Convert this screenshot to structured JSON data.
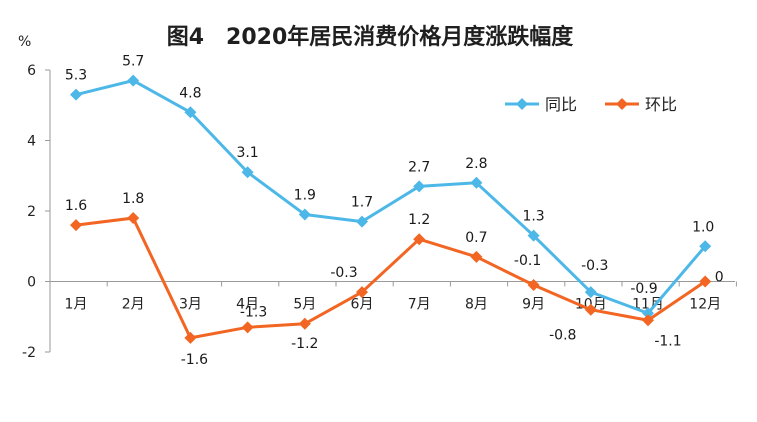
{
  "chart_data": {
    "type": "line",
    "title": "图4　2020年居民消费价格月度涨跌幅度",
    "ylabel": "%",
    "xlabel": "",
    "ylim": [
      -2,
      6
    ],
    "yticks": [
      -2,
      0,
      2,
      4,
      6
    ],
    "grid": false,
    "legend_position": "top-right",
    "categories": [
      "1月",
      "2月",
      "3月",
      "4月",
      "5月",
      "6月",
      "7月",
      "8月",
      "9月",
      "10月",
      "11月",
      "12月"
    ],
    "series": [
      {
        "name": "同比",
        "color": "#4DB8E8",
        "values": [
          5.3,
          5.7,
          4.8,
          3.1,
          1.9,
          1.7,
          2.7,
          2.8,
          1.3,
          -0.3,
          -0.9,
          1.0
        ],
        "labels": [
          "5.3",
          "5.7",
          "4.8",
          "3.1",
          "1.9",
          "1.7",
          "2.7",
          "2.8",
          "1.3",
          "-0.3",
          "-0.9",
          "1.0"
        ]
      },
      {
        "name": "环比",
        "color": "#F26522",
        "values": [
          1.6,
          1.8,
          -1.6,
          -1.3,
          -1.2,
          -0.3,
          1.2,
          0.7,
          -0.1,
          -0.8,
          -1.1,
          0
        ],
        "labels": [
          "1.6",
          "1.8",
          "-1.6",
          "-1.3",
          "-1.2",
          "-0.3",
          "1.2",
          "0.7",
          "-0.1",
          "-0.8",
          "-1.1",
          "0"
        ]
      }
    ]
  }
}
